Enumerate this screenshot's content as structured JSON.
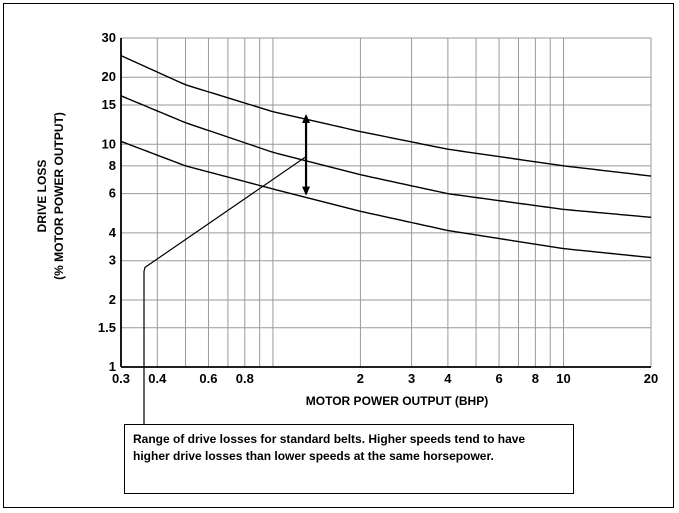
{
  "chart_data": {
    "type": "line",
    "xlabel": "MOTOR POWER OUTPUT (BHP)",
    "ylabel": "DRIVE LOSS",
    "ylabel2": "(% MOTOR POWER OUTPUT)",
    "x_scale": "log",
    "y_scale": "log",
    "xlim": [
      0.3,
      20
    ],
    "ylim": [
      1,
      30
    ],
    "grid": true,
    "x_ticks": [
      0.3,
      0.4,
      0.6,
      0.8,
      1,
      2,
      3,
      4,
      6,
      8,
      10,
      20
    ],
    "x_tick_labels": [
      "0.3",
      "0.4",
      "0.6",
      "0.8",
      "",
      "2",
      "3",
      "4",
      "6",
      "8",
      "10",
      "20"
    ],
    "x_gridlines": [
      0.3,
      0.4,
      0.5,
      0.6,
      0.7,
      0.8,
      0.9,
      1,
      2,
      3,
      4,
      5,
      6,
      7,
      8,
      9,
      10,
      20
    ],
    "y_ticks": [
      1,
      1.5,
      2,
      3,
      4,
      6,
      8,
      10,
      15,
      20,
      30
    ],
    "y_tick_labels": [
      "1",
      "1.5",
      "2",
      "3",
      "4",
      "6",
      "8",
      "10",
      "15",
      "20",
      "30"
    ],
    "y_gridlines": [
      1,
      1.5,
      2,
      3,
      4,
      6,
      8,
      10,
      15,
      20,
      30
    ],
    "series": [
      {
        "x": [
          0.3,
          0.5,
          1,
          2,
          4,
          10,
          20
        ],
        "values": [
          25,
          18.5,
          14,
          11.4,
          9.5,
          8.0,
          7.2
        ]
      },
      {
        "x": [
          0.3,
          0.5,
          1,
          2,
          4,
          10,
          20
        ],
        "values": [
          16.5,
          12.5,
          9.2,
          7.3,
          6.0,
          5.1,
          4.7
        ]
      },
      {
        "x": [
          0.3,
          0.5,
          1,
          2,
          4,
          10,
          20
        ],
        "values": [
          10.3,
          8.0,
          6.3,
          5.0,
          4.1,
          3.4,
          3.1
        ]
      }
    ],
    "range_marker": {
      "x": 1.3,
      "y_top": 13.4,
      "y_bottom": 6.0
    },
    "callout_anchor": {
      "x": 1.3,
      "y": 8.8
    },
    "note": "Range of drive losses for standard belts. Higher speeds tend to have higher drive losses than lower speeds at the same horsepower."
  }
}
